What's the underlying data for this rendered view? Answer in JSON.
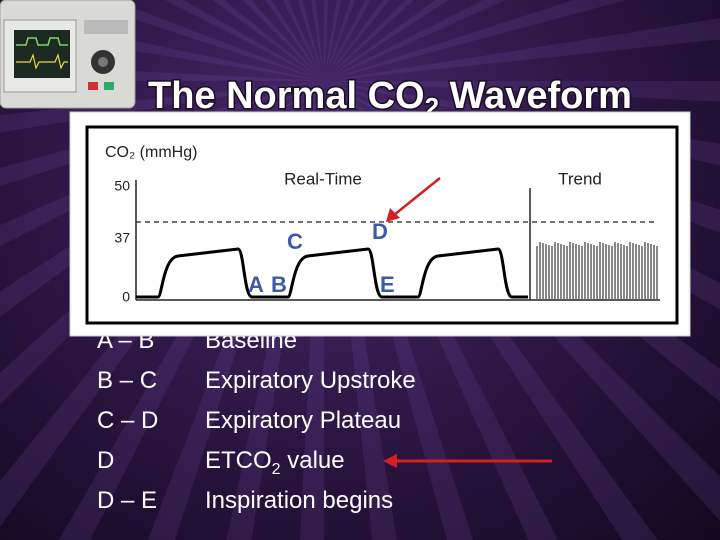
{
  "title": {
    "text": "The Normal CO",
    "sub": "2",
    "tail": " Waveform"
  },
  "figure": {
    "y_label": "CO₂ (mmHg)",
    "ticks": [
      "50",
      "37",
      "0"
    ],
    "real_time": "Real-Time",
    "trend": "Trend",
    "points": [
      "A",
      "B",
      "C",
      "D",
      "E"
    ]
  },
  "table": {
    "rows": [
      [
        "A – B",
        "Baseline"
      ],
      [
        "B – C",
        "Expiratory Upstroke"
      ],
      [
        "C – D",
        "Expiratory Plateau"
      ],
      [
        "D",
        {
          "text": "ETCO",
          "sub": "2",
          "tail": " value"
        }
      ],
      [
        "D – E",
        "Inspiration begins"
      ]
    ]
  }
}
